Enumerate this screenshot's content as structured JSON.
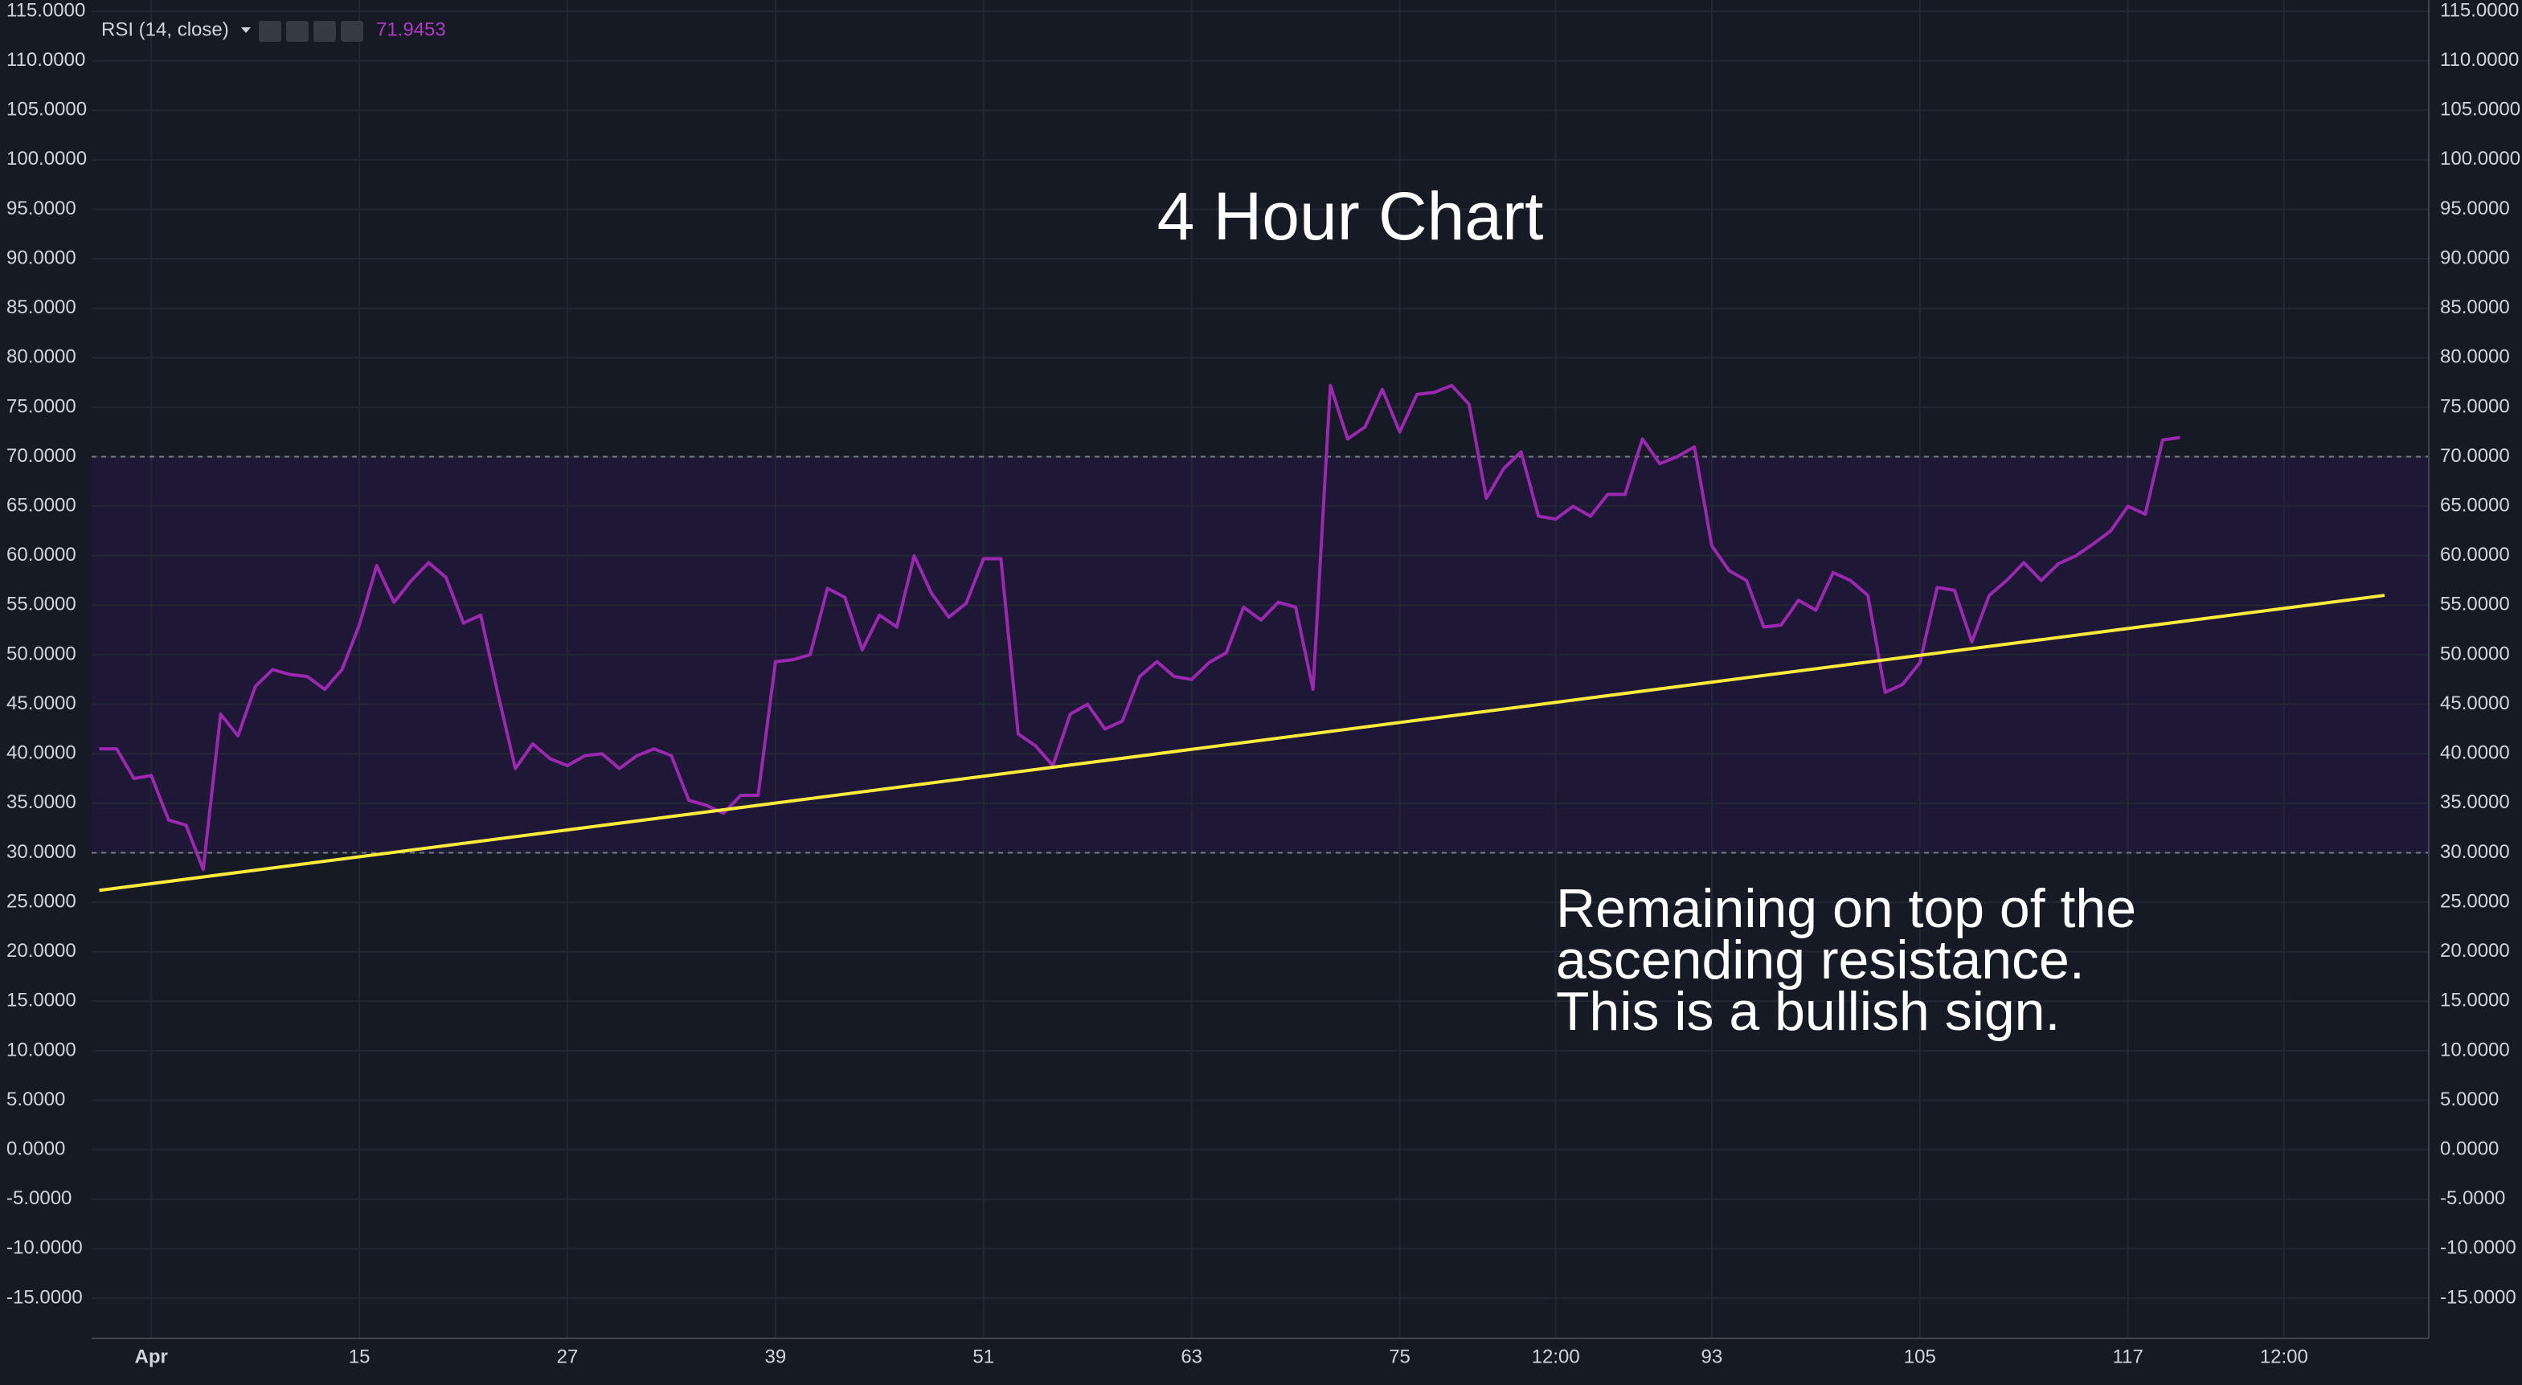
{
  "chart_data": {
    "type": "line",
    "title": "4 Hour Chart",
    "annotation": [
      "Remaining on top of the",
      "ascending resistance.",
      "This is a bullish sign."
    ],
    "x": [
      0,
      1,
      2,
      3,
      4,
      5,
      6,
      7,
      8,
      9,
      10,
      11,
      12,
      13,
      14,
      15,
      16,
      17,
      18,
      19,
      20,
      21,
      22,
      23,
      24,
      25,
      26,
      27,
      28,
      29,
      30,
      31,
      32,
      33,
      34,
      35,
      36,
      37,
      38,
      39,
      40,
      41,
      42,
      43,
      44,
      45,
      46,
      47,
      48,
      49,
      50,
      51,
      52,
      53,
      54,
      55,
      56,
      57,
      58,
      59,
      60,
      61,
      62,
      63,
      64,
      65,
      66,
      67,
      68,
      69,
      70,
      71,
      72,
      73,
      74,
      75,
      76,
      77,
      78,
      79,
      80,
      81,
      82,
      83,
      84,
      85,
      86,
      87,
      88,
      89,
      90,
      91,
      92,
      93,
      94,
      95,
      96,
      97,
      98,
      99,
      100,
      101,
      102,
      103,
      104,
      105,
      106,
      107,
      108,
      109,
      110,
      111,
      112,
      113,
      114,
      115,
      116,
      117,
      118,
      119,
      120
    ],
    "series": [
      {
        "name": "RSI (14, close)",
        "color": "#9c27b0",
        "values": [
          40.5,
          40.5,
          37.5,
          37.8,
          33.3,
          32.8,
          28.3,
          44,
          41.8,
          46.8,
          48.5,
          48,
          47.8,
          46.5,
          48.5,
          53,
          59,
          55.3,
          57.5,
          59.3,
          57.8,
          53.2,
          54,
          46,
          38.5,
          41,
          39.5,
          38.8,
          39.8,
          40,
          38.5,
          39.8,
          40.5,
          39.8,
          35.3,
          34.8,
          34,
          35.8,
          35.8,
          49.3,
          49.5,
          50,
          56.7,
          55.8,
          50.5,
          54,
          52.8,
          60,
          56.2,
          53.8,
          55.2,
          59.7,
          59.7,
          42,
          40.8,
          38.8,
          44,
          45,
          42.5,
          43.3,
          47.8,
          49.3,
          47.8,
          47.5,
          49.2,
          50.2,
          54.8,
          53.5,
          55.3,
          54.8,
          46.5,
          77.2,
          71.8,
          73,
          76.8,
          72.5,
          76.3,
          76.5,
          77.2,
          75.3,
          65.8,
          68.8,
          70.5,
          64,
          63.7,
          65,
          64,
          66.2,
          66.2,
          71.8,
          69.3,
          70,
          71,
          61,
          58.5,
          57.5,
          52.8,
          53,
          55.5,
          54.5,
          58.3,
          57.5,
          56,
          46.2,
          47,
          49.2,
          56.8,
          56.5,
          51.3,
          56,
          57.5,
          59.3,
          57.5,
          59.2,
          60,
          61.2,
          62.5,
          65,
          64.2,
          71.7,
          71.9453
        ]
      }
    ],
    "trendline": {
      "color": "#ffeb3b",
      "x": [
        0,
        131.8
      ],
      "y": [
        26.2,
        56
      ]
    },
    "band": {
      "lower": 30,
      "upper": 70,
      "color": "#1e1836"
    },
    "xlim": [
      -0.44,
      134.35
    ],
    "xticks": [
      {
        "value": 3,
        "label": "Apr"
      },
      15,
      27,
      39,
      51,
      63,
      75,
      {
        "value": 84,
        "label": "12:00"
      },
      93,
      105,
      117,
      {
        "value": 126,
        "label": "12:00"
      }
    ],
    "xtick_labels_override": null,
    "ylim": [
      -15,
      115
    ],
    "yticks": [
      {
        "value": 115,
        "label": "115.0000"
      },
      {
        "value": 110,
        "label": "110.0000"
      },
      {
        "value": 105,
        "label": "105.0000"
      },
      {
        "value": 100,
        "label": "100.0000"
      },
      {
        "value": 95,
        "label": "95.0000"
      },
      {
        "value": 90,
        "label": "90.0000"
      },
      {
        "value": 85,
        "label": "85.0000"
      },
      {
        "value": 80,
        "label": "80.0000"
      },
      {
        "value": 75,
        "label": "75.0000"
      },
      {
        "value": 70,
        "label": "70.0000"
      },
      {
        "value": 65,
        "label": "65.0000"
      },
      {
        "value": 60,
        "label": "60.0000"
      },
      {
        "value": 55,
        "label": "55.0000"
      },
      {
        "value": 50,
        "label": "50.0000"
      },
      {
        "value": 45,
        "label": "45.0000"
      },
      {
        "value": 40,
        "label": "40.0000"
      },
      {
        "value": 35,
        "label": "35.0000"
      },
      {
        "value": 30,
        "label": "30.0000"
      },
      {
        "value": 25,
        "label": "25.0000"
      },
      {
        "value": 20,
        "label": "20.0000"
      },
      {
        "value": 15,
        "label": "15.0000"
      },
      {
        "value": 10,
        "label": "10.0000"
      },
      {
        "value": 5,
        "label": "5.0000"
      },
      {
        "value": 0,
        "label": "0.0000"
      },
      {
        "value": -5,
        "label": "-5.0000"
      },
      {
        "value": -10,
        "label": "-10.0000"
      },
      {
        "value": -15,
        "label": "-15.0000"
      }
    ],
    "grid": true
  }
}
